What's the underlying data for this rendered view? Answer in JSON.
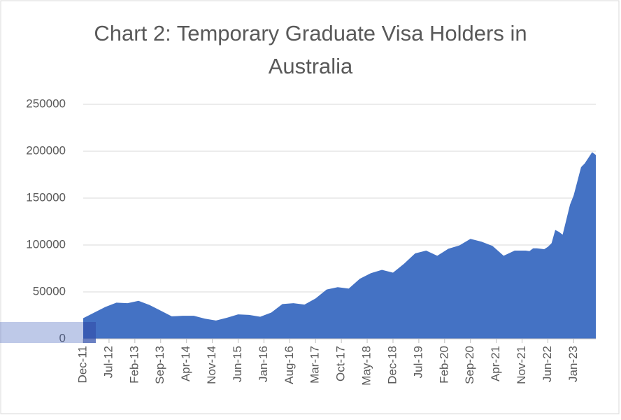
{
  "chart_data": {
    "type": "area",
    "title": "Chart 2: Temporary Graduate Visa Holders in Australia",
    "color": "#4472c4",
    "x": [
      "Dec-11",
      "Mar-12",
      "Jun-12",
      "Sep-12",
      "Dec-12",
      "Mar-13",
      "Jun-13",
      "Sep-13",
      "Dec-13",
      "Mar-14",
      "Jun-14",
      "Sep-14",
      "Dec-14",
      "Mar-15",
      "Jun-15",
      "Sep-15",
      "Dec-15",
      "Mar-16",
      "Jun-16",
      "Sep-16",
      "Dec-16",
      "Mar-17",
      "Jun-17",
      "Sep-17",
      "Dec-17",
      "Mar-18",
      "Jun-18",
      "Sep-18",
      "Dec-18",
      "Mar-19",
      "Jun-19",
      "Sep-19",
      "Dec-19",
      "Mar-20",
      "Jun-20",
      "Sep-20",
      "Dec-20",
      "Mar-21",
      "Jun-21",
      "Sep-21",
      "Dec-21",
      "Jan-22",
      "Feb-22",
      "Mar-22",
      "Apr-22",
      "May-22",
      "Jun-22",
      "Jul-22",
      "Aug-22",
      "Sep-22",
      "Oct-22",
      "Nov-22",
      "Dec-22",
      "Jan-23",
      "Feb-23",
      "Mar-23",
      "Apr-23",
      "May-23",
      "Jun-23",
      "Jul-23"
    ],
    "values": [
      22000,
      28000,
      34000,
      38500,
      38000,
      40500,
      36000,
      30000,
      24000,
      24500,
      24500,
      21500,
      19500,
      22500,
      26000,
      25500,
      23500,
      28000,
      37000,
      38000,
      36500,
      43000,
      52500,
      55000,
      53500,
      64000,
      70000,
      73500,
      70500,
      80000,
      91000,
      94000,
      88500,
      96000,
      99500,
      106500,
      103500,
      99000,
      88500,
      94000,
      94000,
      93500,
      96500,
      96500,
      96000,
      95500,
      98000,
      102000,
      116000,
      114000,
      111000,
      127000,
      143000,
      153000,
      168000,
      183000,
      187000,
      193000,
      199000,
      196000
    ],
    "xlim": [
      "Dec-11",
      "Jul-23"
    ],
    "xticks": [
      "Dec-11",
      "Jul-12",
      "Feb-13",
      "Sep-13",
      "Apr-14",
      "Nov-14",
      "Jun-15",
      "Jan-16",
      "Aug-16",
      "Mar-17",
      "Oct-17",
      "May-18",
      "Dec-18",
      "Jul-19",
      "Feb-20",
      "Sep-20",
      "Apr-21",
      "Nov-21",
      "Jun-22",
      "Jan-23"
    ],
    "ylim": [
      0,
      250000
    ],
    "yticks": [
      0,
      50000,
      100000,
      150000,
      200000,
      250000
    ],
    "grid": true
  }
}
